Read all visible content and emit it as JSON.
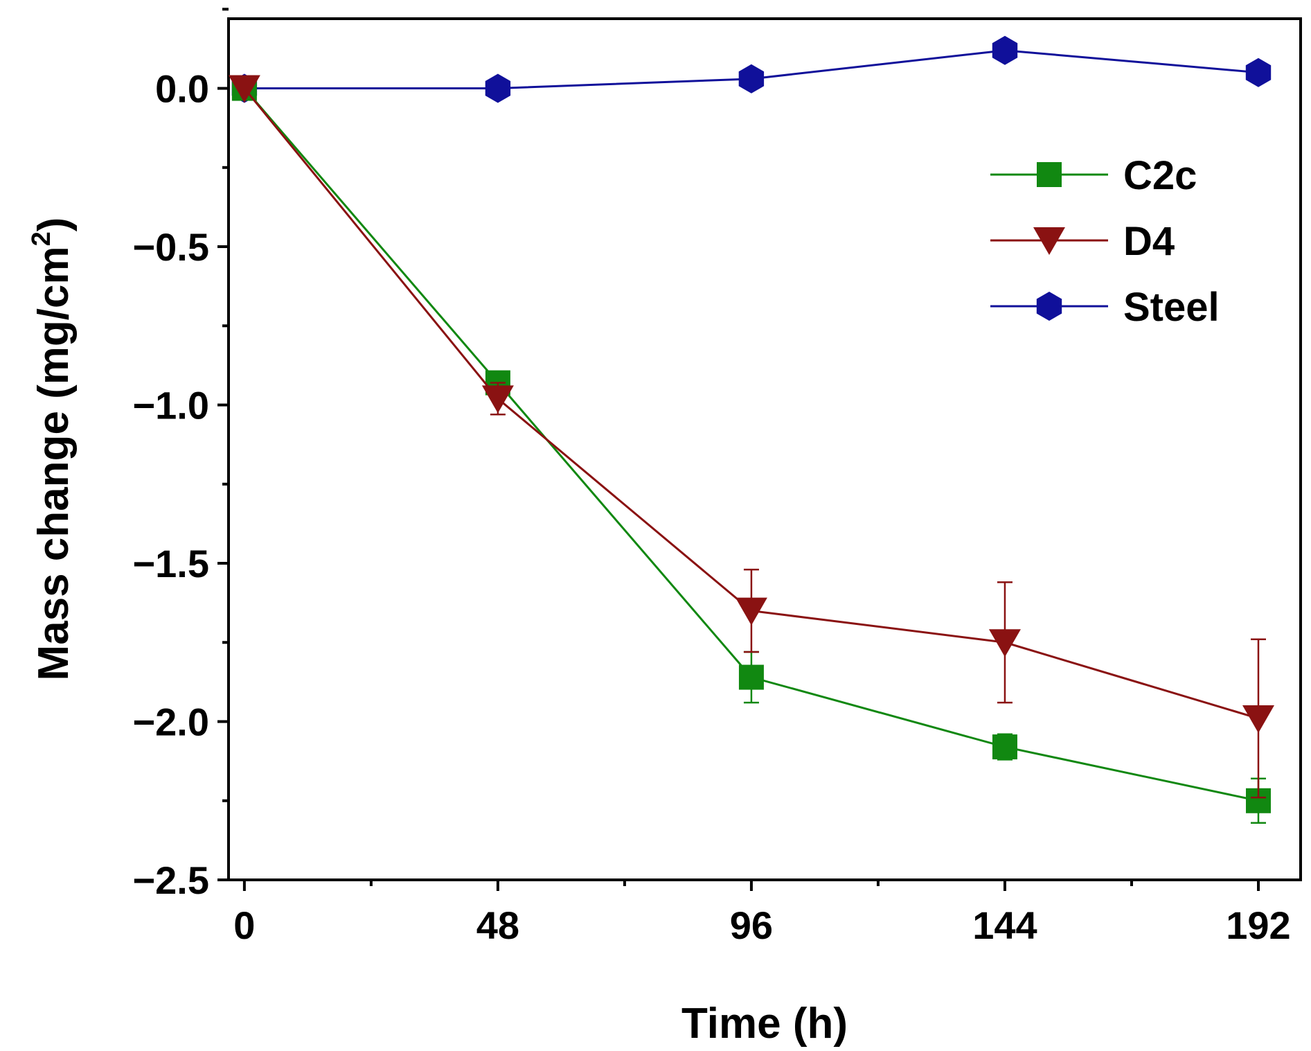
{
  "chart_data": {
    "type": "line",
    "title": "",
    "xlabel": "Time (h)",
    "ylabel": "Mass change (mg/cm",
    "ylabel_sup": "2",
    "ylabel_tail": ")",
    "x": [
      0,
      48,
      96,
      144,
      192
    ],
    "xlim": [
      -3,
      200
    ],
    "ylim": [
      -2.5,
      0.22
    ],
    "x_ticks": [
      0,
      48,
      96,
      144,
      192
    ],
    "x_tick_labels": [
      "0",
      "48",
      "96",
      "144",
      "192"
    ],
    "y_ticks": [
      0.0,
      -0.5,
      -1.0,
      -1.5,
      -2.0,
      -2.5
    ],
    "y_tick_labels": [
      "0.0",
      "−0.5",
      "−1.0",
      "−1.5",
      "−2.0",
      "−2.5"
    ],
    "y_minor_ticks": [
      0.25,
      -0.25,
      -0.75,
      -1.25,
      -1.75,
      -2.25
    ],
    "grid": false,
    "legend_position": "top-right",
    "series": [
      {
        "name": "C2c",
        "marker": "square",
        "color": "#118811",
        "values": [
          0.0,
          -0.93,
          -1.86,
          -2.08,
          -2.25
        ],
        "errors": [
          0.0,
          0.03,
          0.08,
          0.04,
          0.07
        ]
      },
      {
        "name": "D4",
        "marker": "triangle-down",
        "color": "#8a1212",
        "values": [
          0.0,
          -0.98,
          -1.65,
          -1.75,
          -1.99
        ],
        "errors": [
          0.0,
          0.05,
          0.13,
          0.19,
          0.25
        ]
      },
      {
        "name": "Steel",
        "marker": "hexagon",
        "color": "#10109a",
        "values": [
          0.0,
          0.0,
          0.03,
          0.12,
          0.05
        ],
        "errors": [
          0.0,
          0.0,
          0.0,
          0.0,
          0.0
        ]
      }
    ]
  }
}
